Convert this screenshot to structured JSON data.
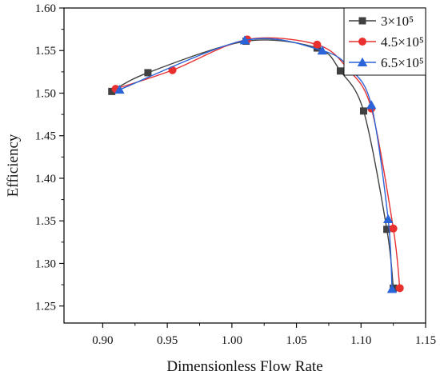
{
  "chart_data": {
    "type": "line",
    "title": "",
    "xlabel": "Dimensionless Flow Rate",
    "ylabel": "Efficiency",
    "xlim": [
      0.87,
      1.15
    ],
    "ylim": [
      1.23,
      1.6
    ],
    "xticks": [
      "0.90",
      "0.95",
      "1.00",
      "1.05",
      "1.10",
      "1.15"
    ],
    "xtick_values": [
      0.9,
      0.95,
      1.0,
      1.05,
      1.1,
      1.15
    ],
    "yticks": [
      "1.25",
      "1.30",
      "1.35",
      "1.40",
      "1.45",
      "1.50",
      "1.55",
      "1.60"
    ],
    "ytick_values": [
      1.25,
      1.3,
      1.35,
      1.4,
      1.45,
      1.5,
      1.55,
      1.6
    ],
    "grid": false,
    "legend_position": "top-right",
    "series": [
      {
        "name": "3×10⁵",
        "marker": "square",
        "color": "#404040",
        "points": [
          {
            "x": 0.907,
            "y": 1.502
          },
          {
            "x": 0.935,
            "y": 1.524
          },
          {
            "x": 1.011,
            "y": 1.561
          },
          {
            "x": 1.066,
            "y": 1.553
          },
          {
            "x": 1.084,
            "y": 1.526
          },
          {
            "x": 1.102,
            "y": 1.479
          },
          {
            "x": 1.12,
            "y": 1.34
          },
          {
            "x": 1.125,
            "y": 1.271
          }
        ]
      },
      {
        "name": "4.5×10⁵",
        "marker": "circle",
        "color": "#e8302f",
        "points": [
          {
            "x": 0.91,
            "y": 1.505
          },
          {
            "x": 0.954,
            "y": 1.527
          },
          {
            "x": 1.012,
            "y": 1.563
          },
          {
            "x": 1.066,
            "y": 1.557
          },
          {
            "x": 1.09,
            "y": 1.528
          },
          {
            "x": 1.108,
            "y": 1.482
          },
          {
            "x": 1.125,
            "y": 1.341
          },
          {
            "x": 1.13,
            "y": 1.271
          }
        ]
      },
      {
        "name": "6.5×10⁵",
        "marker": "triangle",
        "color": "#2b64d8",
        "points": [
          {
            "x": 0.913,
            "y": 1.504
          },
          {
            "x": 1.01,
            "y": 1.562
          },
          {
            "x": 1.07,
            "y": 1.55
          },
          {
            "x": 1.092,
            "y": 1.528
          },
          {
            "x": 1.108,
            "y": 1.486
          },
          {
            "x": 1.121,
            "y": 1.352
          },
          {
            "x": 1.124,
            "y": 1.27
          }
        ]
      }
    ]
  }
}
